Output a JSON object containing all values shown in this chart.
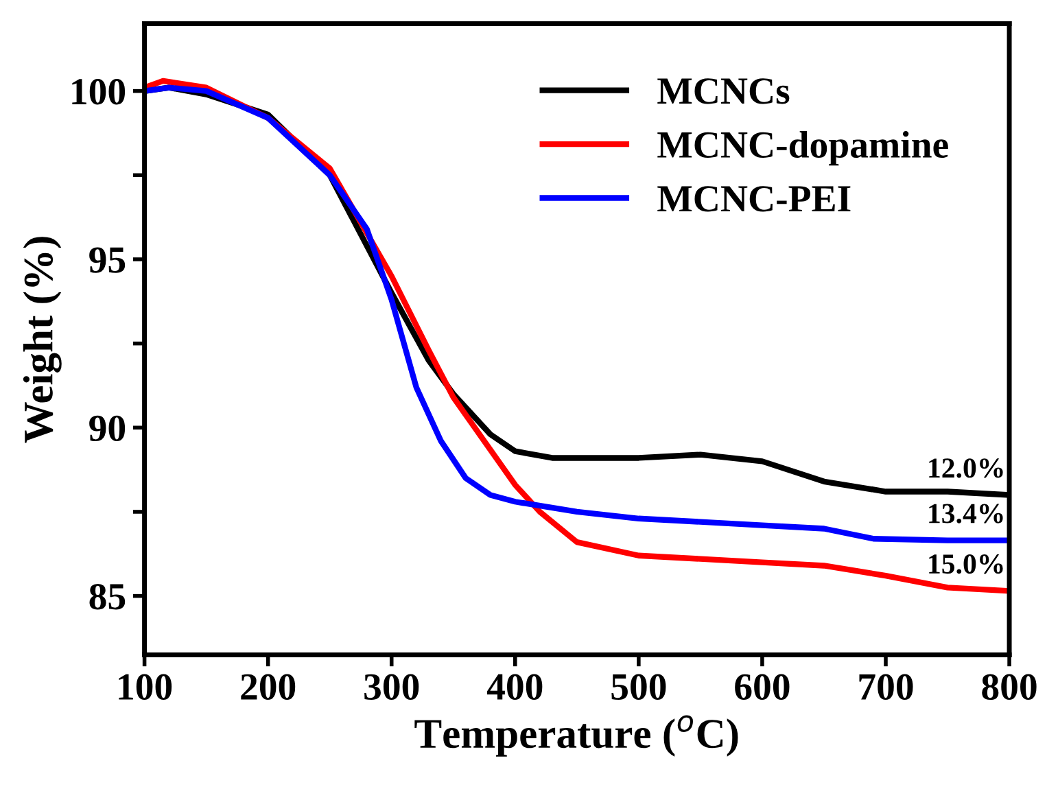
{
  "chart_data": {
    "type": "line",
    "xlabel": "Temperature ($^{o}$C)",
    "ylabel": "Weight (%)",
    "xlim": [
      100,
      800
    ],
    "xticks": [
      100,
      200,
      300,
      400,
      500,
      600,
      700,
      800
    ],
    "ylim": [
      83.25,
      102
    ],
    "yticks": [
      85,
      {
        "value": 87.5,
        "label": null
      },
      90,
      {
        "value": 92.5,
        "label": null
      },
      95,
      {
        "value": 97.5,
        "label": null
      },
      100
    ],
    "grid": false,
    "legend": "top right",
    "marker": "none",
    "line_style": "solid",
    "series": [
      {
        "name": "MCNCs",
        "color": "#000000",
        "x": [
          100,
          120,
          150,
          200,
          250,
          300,
          330,
          350,
          380,
          400,
          430,
          500,
          550,
          600,
          650,
          700,
          750,
          800
        ],
        "values": [
          100,
          100.1,
          99.9,
          99.3,
          97.5,
          94.0,
          92.0,
          91.0,
          89.8,
          89.3,
          89.1,
          89.1,
          89.2,
          89.0,
          88.4,
          88.1,
          88.1,
          88.0
        ]
      },
      {
        "name": "MCNC-dopamine",
        "color": "#ff0000",
        "x": [
          100,
          115,
          150,
          200,
          250,
          300,
          330,
          350,
          400,
          420,
          450,
          500,
          550,
          600,
          650,
          700,
          750,
          800
        ],
        "values": [
          100.1,
          100.3,
          100.1,
          99.2,
          97.7,
          94.5,
          92.3,
          90.9,
          88.3,
          87.5,
          86.6,
          86.2,
          86.1,
          86.0,
          85.9,
          85.6,
          85.25,
          85.15
        ]
      },
      {
        "name": "MCNC-PEI",
        "color": "#0000ff",
        "x": [
          100,
          120,
          150,
          200,
          250,
          280,
          300,
          320,
          340,
          360,
          380,
          400,
          450,
          500,
          600,
          650,
          690,
          750,
          800
        ],
        "values": [
          100,
          100.1,
          100.0,
          99.2,
          97.5,
          95.9,
          93.8,
          91.2,
          89.6,
          88.5,
          88.0,
          87.8,
          87.5,
          87.3,
          87.1,
          87.0,
          86.7,
          86.65,
          86.65
        ]
      }
    ],
    "annotations": [
      {
        "text": "12.0%",
        "y": 88.0
      },
      {
        "text": "13.4%",
        "y": 86.65
      },
      {
        "text": "15.0%",
        "y": 85.15
      }
    ]
  }
}
